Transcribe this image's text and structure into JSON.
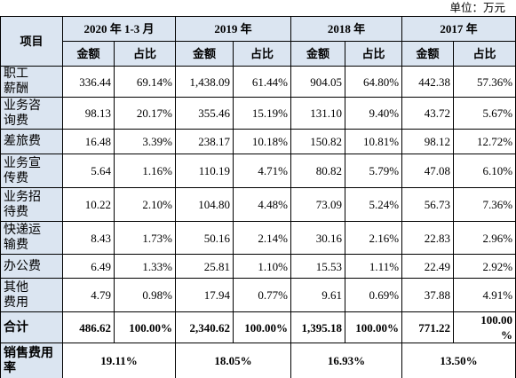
{
  "unit": "单位：万元",
  "table": {
    "corner": "项目",
    "periods": [
      "2020 年 1-3 月",
      "2019 年",
      "2018 年",
      "2017 年"
    ],
    "subheaders": [
      "金额",
      "占比",
      "金额",
      "占比",
      "金额",
      "占比",
      "金额",
      "占比"
    ],
    "rows": [
      [
        "职工\n薪酬",
        "336.44",
        "69.14%",
        "1,438.09",
        "61.44%",
        "904.05",
        "64.80%",
        "442.38",
        "57.36%"
      ],
      [
        "业务咨\n询费",
        "98.13",
        "20.17%",
        "355.46",
        "15.19%",
        "131.10",
        "9.40%",
        "43.72",
        "5.67%"
      ],
      [
        "差旅费",
        "16.48",
        "3.39%",
        "238.17",
        "10.18%",
        "150.82",
        "10.81%",
        "98.12",
        "12.72%"
      ],
      [
        "业务宣\n传费",
        "5.64",
        "1.16%",
        "110.19",
        "4.71%",
        "80.82",
        "5.79%",
        "47.08",
        "6.10%"
      ],
      [
        "业务招\n待费",
        "10.22",
        "2.10%",
        "104.80",
        "4.48%",
        "73.09",
        "5.24%",
        "56.73",
        "7.36%"
      ],
      [
        "快递运\n输费",
        "8.43",
        "1.73%",
        "50.16",
        "2.14%",
        "30.16",
        "2.16%",
        "22.83",
        "2.96%"
      ],
      [
        "办公费",
        "6.49",
        "1.33%",
        "25.81",
        "1.10%",
        "15.53",
        "1.11%",
        "22.49",
        "2.92%"
      ],
      [
        "其他\n费用",
        "4.79",
        "0.98%",
        "17.94",
        "0.77%",
        "9.61",
        "0.69%",
        "37.88",
        "4.91%"
      ]
    ],
    "total": [
      "合计",
      "486.62",
      "100.00%",
      "2,340.62",
      "100.00%",
      "1,395.18",
      "100.00%",
      "771.22",
      "100.00\n%"
    ],
    "ratio": {
      "label": "销售费用\n率",
      "values": [
        "19.11%",
        "18.05%",
        "16.93%",
        "13.50%"
      ]
    }
  }
}
